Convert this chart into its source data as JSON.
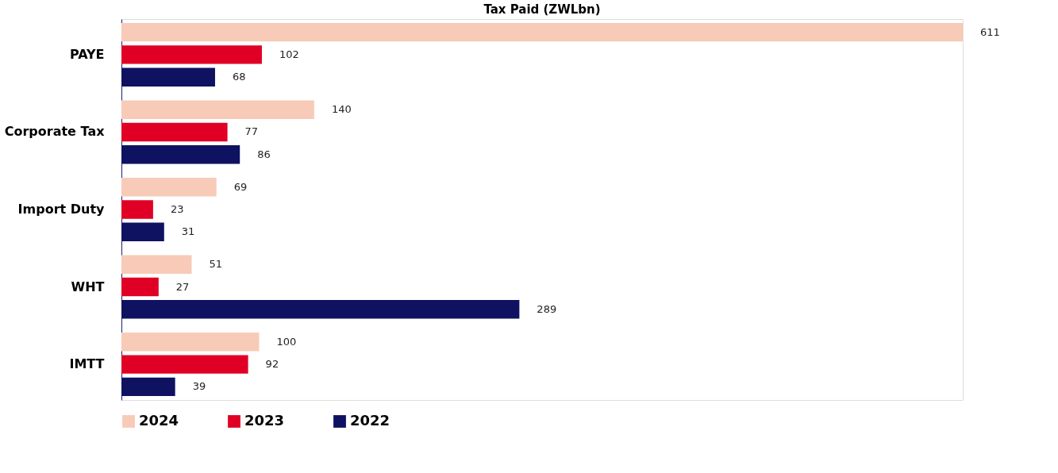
{
  "chart_data": {
    "type": "bar",
    "orientation": "horizontal",
    "title": "Tax Paid (ZWLbn)",
    "categories": [
      "PAYE",
      "Corporate Tax",
      "Import Duty",
      "WHT",
      "IMTT"
    ],
    "series": [
      {
        "name": "2024",
        "color": "#f7cbb7",
        "values": [
          611,
          140,
          69,
          51,
          100
        ]
      },
      {
        "name": "2023",
        "color": "#e10025",
        "values": [
          102,
          77,
          23,
          27,
          92
        ]
      },
      {
        "name": "2022",
        "color": "#0e1260",
        "values": [
          68,
          86,
          31,
          289,
          39
        ]
      }
    ],
    "data_labels": true,
    "legend": "bottom",
    "grid": false
  }
}
